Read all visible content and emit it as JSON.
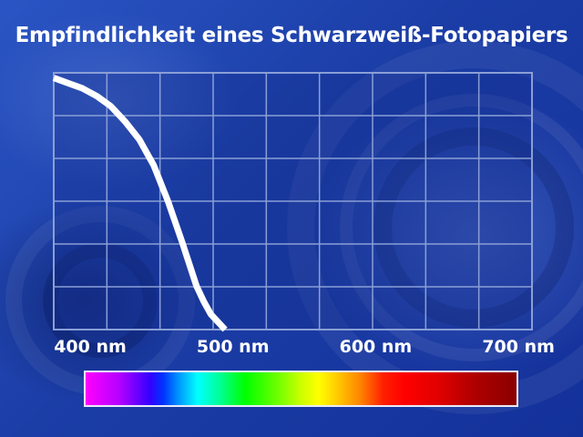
{
  "title": "Empfindlichkeit eines Schwarzweiß-Fotopapiers",
  "colors": {
    "background": "#1c3fa8",
    "grid": "#8a9fd6",
    "curve": "#ffffff",
    "text": "#ffffff"
  },
  "chart_data": {
    "type": "line",
    "title": "Empfindlichkeit eines Schwarzweiß-Fotopapiers",
    "xlabel": "",
    "ylabel": "",
    "x_ticks": [
      400,
      500,
      600,
      700
    ],
    "x_tick_labels": [
      "400 nm",
      "500 nm",
      "600 nm",
      "700 nm"
    ],
    "x_unit": "nm",
    "xlim": [
      400,
      735
    ],
    "ylim": [
      0,
      1
    ],
    "grid": true,
    "y_tick_labels_shown": false,
    "series": [
      {
        "x": [
          400,
          410,
          420,
          430,
          440,
          450,
          460,
          470,
          480,
          490,
          500,
          505,
          510,
          515,
          520
        ],
        "y": [
          0.98,
          0.96,
          0.94,
          0.91,
          0.87,
          0.81,
          0.74,
          0.64,
          0.5,
          0.34,
          0.17,
          0.11,
          0.06,
          0.03,
          0.0
        ]
      }
    ],
    "spectrum_bar": true
  }
}
